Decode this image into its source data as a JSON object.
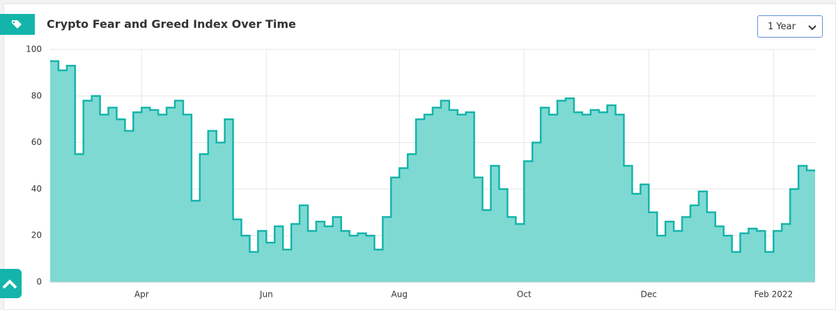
{
  "ui": {
    "range_select": "1 Year"
  },
  "chart_data": {
    "type": "area",
    "title": "Crypto Fear and Greed Index Over Time",
    "categories": [
      null,
      null,
      null,
      null,
      null,
      null,
      null,
      null,
      null,
      null,
      null,
      "Apr",
      null,
      null,
      null,
      null,
      null,
      null,
      null,
      null,
      null,
      null,
      null,
      null,
      null,
      null,
      "Jun",
      null,
      null,
      null,
      null,
      null,
      null,
      null,
      null,
      null,
      null,
      null,
      null,
      null,
      null,
      null,
      "Aug",
      null,
      null,
      null,
      null,
      null,
      null,
      null,
      null,
      null,
      null,
      null,
      null,
      null,
      null,
      "Oct",
      null,
      null,
      null,
      null,
      null,
      null,
      null,
      null,
      null,
      null,
      null,
      null,
      null,
      null,
      "Dec",
      null,
      null,
      null,
      null,
      null,
      null,
      null,
      null,
      null,
      null,
      null,
      null,
      null,
      null,
      "Feb 2022",
      null,
      null,
      null,
      null
    ],
    "values": [
      95,
      91,
      93,
      55,
      78,
      80,
      72,
      75,
      70,
      65,
      73,
      75,
      74,
      72,
      75,
      78,
      72,
      35,
      55,
      65,
      60,
      70,
      27,
      20,
      13,
      22,
      17,
      24,
      14,
      25,
      33,
      22,
      26,
      24,
      28,
      22,
      20,
      21,
      20,
      14,
      28,
      45,
      49,
      55,
      70,
      72,
      75,
      78,
      74,
      72,
      73,
      45,
      31,
      50,
      40,
      28,
      25,
      52,
      60,
      75,
      72,
      78,
      79,
      73,
      72,
      74,
      73,
      76,
      72,
      50,
      38,
      42,
      30,
      20,
      26,
      22,
      28,
      33,
      39,
      30,
      24,
      20,
      13,
      21,
      23,
      22,
      13,
      22,
      25,
      40,
      50,
      48
    ],
    "color": "#14b4aa",
    "fill": "#7fd9d3",
    "ylim": [
      0,
      100
    ],
    "yticks": [
      0,
      20,
      40,
      60,
      80,
      100
    ],
    "grid": true
  }
}
